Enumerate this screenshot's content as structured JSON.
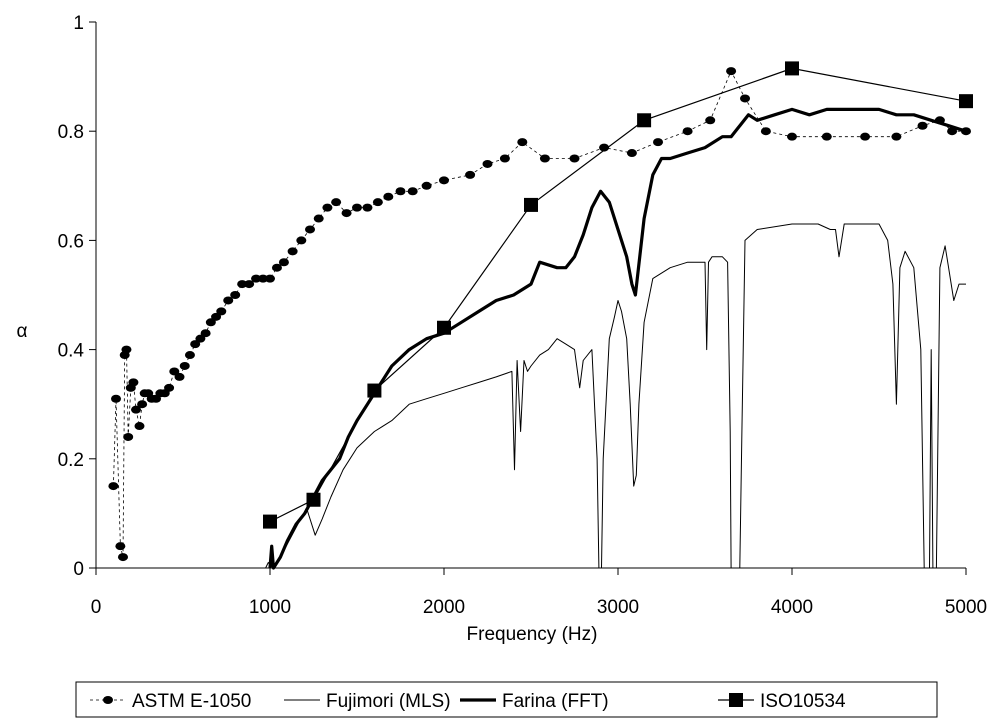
{
  "chart_data": {
    "type": "line",
    "title": "",
    "xlabel": "Frequency (Hz)",
    "ylabel": "α",
    "xlim": [
      0,
      5000
    ],
    "ylim": [
      0,
      1
    ],
    "xticks": [
      0,
      1000,
      2000,
      3000,
      4000,
      5000
    ],
    "yticks": [
      0,
      0.2,
      0.4,
      0.6,
      0.8,
      1
    ],
    "xtick_labels": [
      "0",
      "1000",
      "2000",
      "3000",
      "4000",
      "5000"
    ],
    "ytick_labels": [
      "0",
      "0.2",
      "0.4",
      "0.6",
      "0.8",
      "1"
    ],
    "grid": false,
    "legend_position": "bottom",
    "series": [
      {
        "name": "ASTM  E-1050",
        "style": "dashed-dots",
        "color": "#000000",
        "points": [
          [
            100,
            0.15
          ],
          [
            115,
            0.31
          ],
          [
            140,
            0.04
          ],
          [
            155,
            0.02
          ],
          [
            165,
            0.39
          ],
          [
            175,
            0.4
          ],
          [
            185,
            0.24
          ],
          [
            200,
            0.33
          ],
          [
            215,
            0.34
          ],
          [
            230,
            0.29
          ],
          [
            250,
            0.26
          ],
          [
            265,
            0.3
          ],
          [
            280,
            0.32
          ],
          [
            300,
            0.32
          ],
          [
            320,
            0.31
          ],
          [
            345,
            0.31
          ],
          [
            370,
            0.32
          ],
          [
            395,
            0.32
          ],
          [
            420,
            0.33
          ],
          [
            450,
            0.36
          ],
          [
            480,
            0.35
          ],
          [
            510,
            0.37
          ],
          [
            540,
            0.39
          ],
          [
            570,
            0.41
          ],
          [
            600,
            0.42
          ],
          [
            630,
            0.43
          ],
          [
            660,
            0.45
          ],
          [
            690,
            0.46
          ],
          [
            720,
            0.47
          ],
          [
            760,
            0.49
          ],
          [
            800,
            0.5
          ],
          [
            840,
            0.52
          ],
          [
            880,
            0.52
          ],
          [
            920,
            0.53
          ],
          [
            960,
            0.53
          ],
          [
            1000,
            0.53
          ],
          [
            1040,
            0.55
          ],
          [
            1080,
            0.56
          ],
          [
            1130,
            0.58
          ],
          [
            1180,
            0.6
          ],
          [
            1230,
            0.62
          ],
          [
            1280,
            0.64
          ],
          [
            1330,
            0.66
          ],
          [
            1380,
            0.67
          ],
          [
            1440,
            0.65
          ],
          [
            1500,
            0.66
          ],
          [
            1560,
            0.66
          ],
          [
            1620,
            0.67
          ],
          [
            1680,
            0.68
          ],
          [
            1750,
            0.69
          ],
          [
            1820,
            0.69
          ],
          [
            1900,
            0.7
          ],
          [
            2000,
            0.71
          ],
          [
            2150,
            0.72
          ],
          [
            2250,
            0.74
          ],
          [
            2350,
            0.75
          ],
          [
            2450,
            0.78
          ],
          [
            2580,
            0.75
          ],
          [
            2750,
            0.75
          ],
          [
            2920,
            0.77
          ],
          [
            3080,
            0.76
          ],
          [
            3230,
            0.78
          ],
          [
            3400,
            0.8
          ],
          [
            3530,
            0.82
          ],
          [
            3650,
            0.91
          ],
          [
            3730,
            0.86
          ],
          [
            3850,
            0.8
          ],
          [
            4000,
            0.79
          ],
          [
            4200,
            0.79
          ],
          [
            4420,
            0.79
          ],
          [
            4600,
            0.79
          ],
          [
            4750,
            0.81
          ],
          [
            4850,
            0.82
          ],
          [
            4920,
            0.8
          ],
          [
            5000,
            0.8
          ]
        ]
      },
      {
        "name": "Fujimori (MLS)",
        "style": "thin",
        "color": "#000000",
        "points": [
          [
            0,
            0.0
          ],
          [
            420,
            0.0
          ],
          [
            975,
            0.0
          ],
          [
            990,
            0.01
          ],
          [
            1020,
            0.0
          ],
          [
            1060,
            0.02
          ],
          [
            1110,
            0.05
          ],
          [
            1160,
            0.08
          ],
          [
            1210,
            0.11
          ],
          [
            1260,
            0.06
          ],
          [
            1300,
            0.09
          ],
          [
            1350,
            0.13
          ],
          [
            1420,
            0.18
          ],
          [
            1500,
            0.22
          ],
          [
            1600,
            0.25
          ],
          [
            1700,
            0.27
          ],
          [
            1800,
            0.3
          ],
          [
            1900,
            0.31
          ],
          [
            2000,
            0.32
          ],
          [
            2100,
            0.33
          ],
          [
            2200,
            0.34
          ],
          [
            2300,
            0.35
          ],
          [
            2390,
            0.36
          ],
          [
            2405,
            0.18
          ],
          [
            2420,
            0.38
          ],
          [
            2440,
            0.25
          ],
          [
            2460,
            0.38
          ],
          [
            2480,
            0.36
          ],
          [
            2500,
            0.37
          ],
          [
            2550,
            0.39
          ],
          [
            2600,
            0.4
          ],
          [
            2650,
            0.42
          ],
          [
            2700,
            0.41
          ],
          [
            2750,
            0.4
          ],
          [
            2780,
            0.33
          ],
          [
            2800,
            0.38
          ],
          [
            2850,
            0.4
          ],
          [
            2880,
            0.2
          ],
          [
            2890,
            0.0
          ],
          [
            2905,
            0.0
          ],
          [
            2915,
            0.2
          ],
          [
            2950,
            0.42
          ],
          [
            2980,
            0.46
          ],
          [
            3000,
            0.49
          ],
          [
            3020,
            0.47
          ],
          [
            3050,
            0.42
          ],
          [
            3070,
            0.3
          ],
          [
            3090,
            0.15
          ],
          [
            3105,
            0.17
          ],
          [
            3120,
            0.3
          ],
          [
            3150,
            0.45
          ],
          [
            3200,
            0.53
          ],
          [
            3300,
            0.55
          ],
          [
            3400,
            0.56
          ],
          [
            3500,
            0.56
          ],
          [
            3510,
            0.4
          ],
          [
            3520,
            0.56
          ],
          [
            3540,
            0.57
          ],
          [
            3600,
            0.57
          ],
          [
            3630,
            0.56
          ],
          [
            3645,
            0.25
          ],
          [
            3650,
            0.0
          ],
          [
            3700,
            0.0
          ],
          [
            3712,
            0.25
          ],
          [
            3730,
            0.6
          ],
          [
            3800,
            0.62
          ],
          [
            4000,
            0.63
          ],
          [
            4150,
            0.63
          ],
          [
            4220,
            0.62
          ],
          [
            4250,
            0.62
          ],
          [
            4270,
            0.57
          ],
          [
            4300,
            0.63
          ],
          [
            4400,
            0.63
          ],
          [
            4500,
            0.63
          ],
          [
            4550,
            0.6
          ],
          [
            4580,
            0.52
          ],
          [
            4600,
            0.3
          ],
          [
            4620,
            0.55
          ],
          [
            4650,
            0.58
          ],
          [
            4700,
            0.55
          ],
          [
            4740,
            0.4
          ],
          [
            4760,
            0.0
          ],
          [
            4790,
            0.0
          ],
          [
            4800,
            0.4
          ],
          [
            4810,
            0.0
          ],
          [
            4830,
            0.0
          ],
          [
            4850,
            0.55
          ],
          [
            4880,
            0.59
          ],
          [
            4900,
            0.55
          ],
          [
            4930,
            0.49
          ],
          [
            4960,
            0.52
          ],
          [
            5000,
            0.52
          ]
        ]
      },
      {
        "name": "Farina (FFT)",
        "style": "thick",
        "color": "#000000",
        "points": [
          [
            1000,
            0.0
          ],
          [
            1010,
            0.04
          ],
          [
            1020,
            0.0
          ],
          [
            1060,
            0.02
          ],
          [
            1100,
            0.05
          ],
          [
            1150,
            0.08
          ],
          [
            1200,
            0.1
          ],
          [
            1300,
            0.16
          ],
          [
            1400,
            0.2
          ],
          [
            1450,
            0.24
          ],
          [
            1500,
            0.27
          ],
          [
            1600,
            0.32
          ],
          [
            1700,
            0.37
          ],
          [
            1800,
            0.4
          ],
          [
            1900,
            0.42
          ],
          [
            2000,
            0.43
          ],
          [
            2100,
            0.45
          ],
          [
            2200,
            0.47
          ],
          [
            2300,
            0.49
          ],
          [
            2400,
            0.5
          ],
          [
            2500,
            0.52
          ],
          [
            2550,
            0.56
          ],
          [
            2650,
            0.55
          ],
          [
            2700,
            0.55
          ],
          [
            2750,
            0.57
          ],
          [
            2800,
            0.61
          ],
          [
            2850,
            0.66
          ],
          [
            2900,
            0.69
          ],
          [
            2950,
            0.67
          ],
          [
            3000,
            0.62
          ],
          [
            3050,
            0.57
          ],
          [
            3080,
            0.52
          ],
          [
            3100,
            0.5
          ],
          [
            3150,
            0.64
          ],
          [
            3200,
            0.72
          ],
          [
            3250,
            0.75
          ],
          [
            3300,
            0.75
          ],
          [
            3400,
            0.76
          ],
          [
            3500,
            0.77
          ],
          [
            3600,
            0.79
          ],
          [
            3650,
            0.79
          ],
          [
            3700,
            0.81
          ],
          [
            3750,
            0.83
          ],
          [
            3800,
            0.82
          ],
          [
            3900,
            0.83
          ],
          [
            4000,
            0.84
          ],
          [
            4100,
            0.83
          ],
          [
            4200,
            0.84
          ],
          [
            4300,
            0.84
          ],
          [
            4400,
            0.84
          ],
          [
            4500,
            0.84
          ],
          [
            4600,
            0.83
          ],
          [
            4700,
            0.83
          ],
          [
            4800,
            0.82
          ],
          [
            4900,
            0.81
          ],
          [
            5000,
            0.8
          ]
        ]
      },
      {
        "name": "ISO10534",
        "style": "line-squares",
        "color": "#000000",
        "points": [
          [
            1000,
            0.085
          ],
          [
            1250,
            0.125
          ],
          [
            1600,
            0.325
          ],
          [
            2000,
            0.44
          ],
          [
            2500,
            0.665
          ],
          [
            3150,
            0.82
          ],
          [
            4000,
            0.915
          ],
          [
            5000,
            0.855
          ]
        ]
      }
    ]
  }
}
